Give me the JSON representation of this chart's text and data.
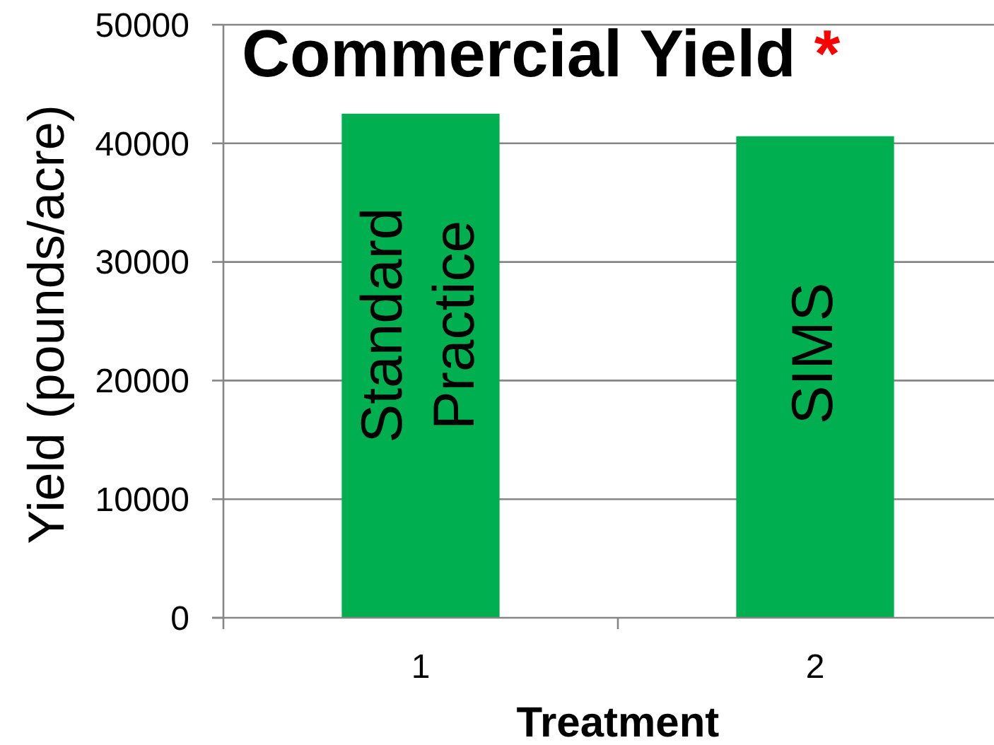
{
  "chart_data": {
    "type": "bar",
    "title": "Commercial Yield",
    "xlabel": "Treatment",
    "ylabel": "Yield (pounds/acre)",
    "categories": [
      "1",
      "2"
    ],
    "values": [
      42500,
      40600
    ],
    "color": "#00b050",
    "ylim": [
      0,
      50000
    ],
    "yticks": [
      0,
      10000,
      20000,
      30000,
      40000,
      50000
    ],
    "grid": "y",
    "annotations": [
      "*",
      "Standard Practice",
      "SIMS"
    ]
  }
}
